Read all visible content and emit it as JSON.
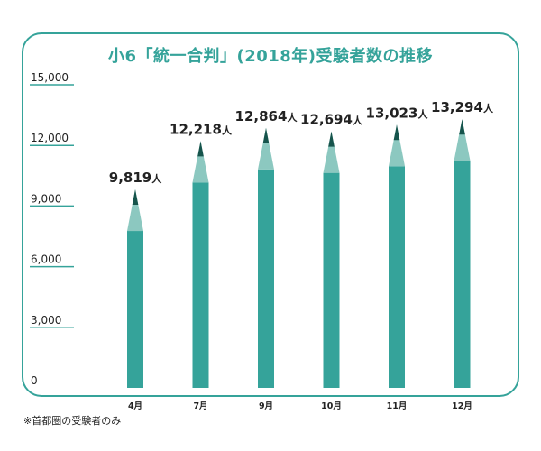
{
  "title": "小6「統一合判」(2018年)受験者数の推移",
  "footnote": "※首都圏の受験者のみ",
  "colors": {
    "frame": "#35a39a",
    "bar": "#35a39a",
    "tip_light": "#8cc8c0",
    "tip_dark": "#16544c",
    "axis_line": "#35a39a",
    "text": "#222222"
  },
  "chart_data": {
    "type": "bar",
    "title": "小6「統一合判」(2018年)受験者数の推移",
    "categories": [
      "4月",
      "7月",
      "9月",
      "10月",
      "11月",
      "12月"
    ],
    "values": [
      9819,
      12218,
      12864,
      12694,
      13023,
      13294
    ],
    "data_labels": [
      "9,819",
      "12,218",
      "12,864",
      "12,694",
      "13,023",
      "13,294"
    ],
    "data_label_unit": "人",
    "ytick_labels": [
      "0",
      "3,000",
      "6,000",
      "9,000",
      "12,000",
      "15,000"
    ],
    "ytick_values": [
      0,
      3000,
      6000,
      9000,
      12000,
      15000
    ],
    "ylim": [
      0,
      15000
    ],
    "grid": false,
    "xlabel": "",
    "ylabel": ""
  }
}
